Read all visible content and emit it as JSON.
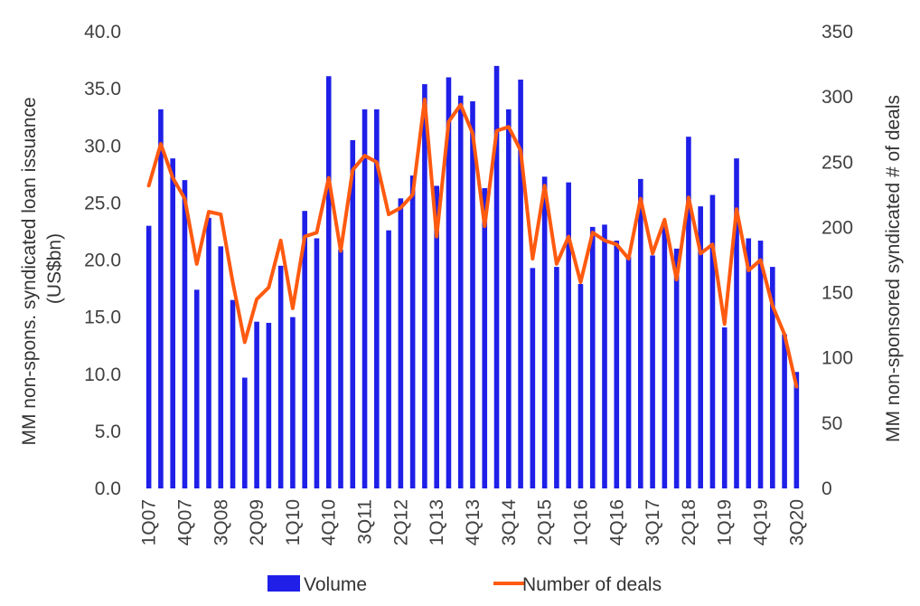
{
  "chart_data": {
    "type": "bar",
    "categories": [
      "1Q07",
      "2Q07",
      "3Q07",
      "4Q07",
      "1Q08",
      "2Q08",
      "3Q08",
      "4Q08",
      "1Q09",
      "2Q09",
      "3Q09",
      "4Q09",
      "1Q10",
      "2Q10",
      "3Q10",
      "4Q10",
      "1Q11",
      "2Q11",
      "3Q11",
      "4Q11",
      "1Q12",
      "2Q12",
      "3Q12",
      "4Q12",
      "1Q13",
      "2Q13",
      "3Q13",
      "4Q13",
      "1Q14",
      "2Q14",
      "3Q14",
      "4Q14",
      "1Q15",
      "2Q15",
      "3Q15",
      "4Q15",
      "1Q16",
      "2Q16",
      "3Q16",
      "4Q16",
      "1Q17",
      "2Q17",
      "3Q17",
      "4Q17",
      "1Q18",
      "2Q18",
      "3Q18",
      "4Q18",
      "1Q19",
      "2Q19",
      "3Q19",
      "4Q19",
      "1Q20",
      "2Q20",
      "3Q20"
    ],
    "tick_labels": [
      "1Q07",
      "4Q07",
      "3Q08",
      "2Q09",
      "1Q10",
      "4Q10",
      "3Q11",
      "2Q12",
      "1Q13",
      "4Q13",
      "3Q14",
      "2Q15",
      "1Q16",
      "4Q16",
      "3Q17",
      "2Q18",
      "1Q19",
      "4Q19",
      "3Q20"
    ],
    "series": [
      {
        "name": "Volume",
        "axis": "left",
        "kind": "bar",
        "color": "#1f1fe8",
        "values": [
          23.0,
          33.2,
          28.9,
          27.0,
          17.4,
          23.7,
          21.2,
          16.5,
          9.7,
          14.6,
          14.5,
          19.5,
          15.0,
          24.3,
          21.9,
          36.1,
          20.9,
          30.5,
          33.2,
          33.2,
          22.6,
          25.4,
          27.4,
          35.4,
          26.5,
          36.0,
          34.4,
          33.9,
          26.3,
          37.0,
          33.2,
          35.8,
          19.3,
          27.3,
          19.4,
          26.8,
          17.9,
          22.9,
          23.1,
          21.7,
          20.3,
          27.1,
          20.4,
          23.1,
          21.0,
          30.8,
          24.7,
          25.7,
          14.1,
          28.9,
          21.9,
          21.7,
          19.4,
          13.5,
          10.2
        ]
      },
      {
        "name": "Number of deals",
        "axis": "right",
        "kind": "line",
        "color": "#ff5a10",
        "values": [
          232,
          264,
          238,
          222,
          172,
          212,
          210,
          158,
          112,
          145,
          154,
          190,
          138,
          193,
          196,
          238,
          182,
          244,
          255,
          250,
          210,
          215,
          225,
          298,
          193,
          281,
          294,
          272,
          201,
          274,
          277,
          259,
          176,
          232,
          172,
          193,
          158,
          196,
          190,
          187,
          176,
          222,
          180,
          206,
          160,
          223,
          180,
          187,
          126,
          214,
          167,
          175,
          140,
          118,
          78
        ]
      }
    ],
    "ylabel": "MM non-spons. syndicated loan issuance (US$bn)",
    "ylabel_lines": [
      "MM non-spons. syndicated loan issuance",
      "(US$bn)"
    ],
    "y2label": "MM non-sponsored syndicated # of deals",
    "ylim": [
      0,
      40
    ],
    "y2lim": [
      0,
      350
    ],
    "yticks": [
      "0.0",
      "5.0",
      "10.0",
      "15.0",
      "20.0",
      "25.0",
      "30.0",
      "35.0",
      "40.0"
    ],
    "y2ticks": [
      "0",
      "50",
      "100",
      "150",
      "200",
      "250",
      "300",
      "350"
    ],
    "grid": false,
    "legend_position": "bottom"
  }
}
